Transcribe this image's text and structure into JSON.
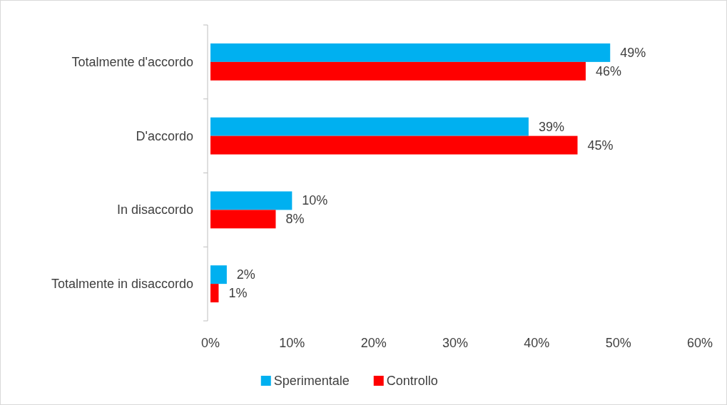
{
  "chart_data": {
    "type": "bar",
    "orientation": "horizontal",
    "categories": [
      "Totalmente d'accordo",
      "D'accordo",
      "In disaccordo",
      "Totalmente in disaccordo"
    ],
    "series": [
      {
        "name": "Sperimentale",
        "color": "#00b0f0",
        "values": [
          49,
          39,
          10,
          2
        ],
        "value_labels": [
          "49%",
          "39%",
          "10%",
          "2%"
        ]
      },
      {
        "name": "Controllo",
        "color": "#ff0000",
        "values": [
          46,
          45,
          8,
          1
        ],
        "value_labels": [
          "46%",
          "45%",
          "8%",
          "1%"
        ]
      }
    ],
    "xlim": [
      0,
      60
    ],
    "xticks": [
      {
        "value": 0,
        "label": "0%"
      },
      {
        "value": 10,
        "label": "10%"
      },
      {
        "value": 20,
        "label": "20%"
      },
      {
        "value": 30,
        "label": "30%"
      },
      {
        "value": 40,
        "label": "40%"
      },
      {
        "value": 50,
        "label": "50%"
      },
      {
        "value": 60,
        "label": "60%"
      }
    ],
    "grid": false,
    "legend": "bottom"
  }
}
